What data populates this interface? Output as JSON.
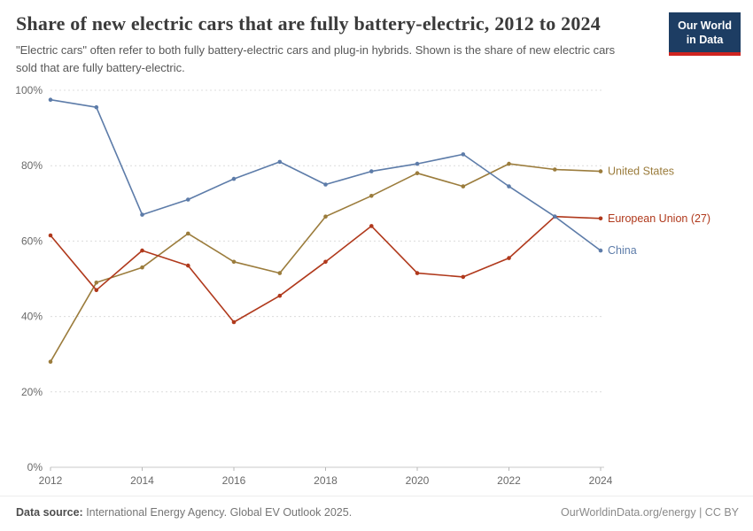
{
  "header": {
    "title": "Share of new electric cars that are fully battery-electric, 2012 to 2024",
    "subtitle": "\"Electric cars\" often refer to both fully battery-electric cars and plug-in hybrids. Shown is the share of new electric cars sold that are fully battery-electric."
  },
  "logo": {
    "line1": "Our World",
    "line2": "in Data",
    "bg_color": "#1d3d63",
    "accent_color": "#cf2420"
  },
  "chart_data": {
    "type": "line",
    "title": "Share of new electric cars that are fully battery-electric, 2012 to 2024",
    "x": [
      2012,
      2013,
      2014,
      2015,
      2016,
      2017,
      2018,
      2019,
      2020,
      2021,
      2022,
      2023,
      2024
    ],
    "series": [
      {
        "name": "United States",
        "color": "#9B7C3C",
        "values": [
          28,
          49,
          53,
          62,
          54.5,
          51.5,
          66.5,
          72,
          78,
          74.5,
          80.5,
          79,
          78.5
        ]
      },
      {
        "name": "European Union (27)",
        "color": "#B0391C",
        "values": [
          61.5,
          47,
          57.5,
          53.5,
          38.5,
          45.5,
          54.5,
          64,
          51.5,
          50.5,
          55.5,
          66.5,
          66
        ]
      },
      {
        "name": "China",
        "color": "#5D7CA9",
        "values": [
          97.5,
          95.5,
          67,
          71,
          76.5,
          81,
          75,
          78.5,
          80.5,
          83,
          74.5,
          66.5,
          57.5
        ]
      }
    ],
    "xlim": [
      2012,
      2024
    ],
    "ylim": [
      0,
      100
    ],
    "xticks": [
      2012,
      2014,
      2016,
      2018,
      2020,
      2022,
      2024
    ],
    "yticks": [
      0,
      20,
      40,
      60,
      80,
      100
    ],
    "y_tick_suffix": "%",
    "grid": true,
    "grid_style": "dashed",
    "legend_position": "right-end-labels"
  },
  "footer": {
    "source_label": "Data source:",
    "source_text": " International Energy Agency. Global EV Outlook 2025.",
    "right_text": "OurWorldinData.org/energy | CC BY"
  }
}
